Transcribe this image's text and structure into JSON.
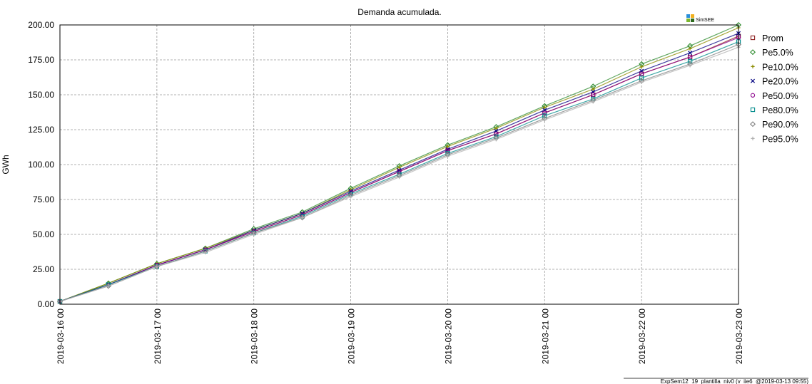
{
  "chart_data": {
    "type": "line",
    "title": "Demanda acumulada.",
    "ylabel": "GWh",
    "xlabel": "",
    "ylim": [
      0,
      200
    ],
    "yticks": [
      "0.00",
      "25.00",
      "50.00",
      "75.00",
      "100.00",
      "125.00",
      "150.00",
      "175.00",
      "200.00"
    ],
    "xticks": [
      "2019-03-16 00",
      "2019-03-17 00",
      "2019-03-18 00",
      "2019-03-19 00",
      "2019-03-20 00",
      "2019-03-21 00",
      "2019-03-22 00",
      "2019-03-23 00"
    ],
    "x": [
      "2019-03-16 00",
      "2019-03-16 12",
      "2019-03-17 00",
      "2019-03-17 12",
      "2019-03-18 00",
      "2019-03-18 12",
      "2019-03-19 00",
      "2019-03-19 12",
      "2019-03-20 00",
      "2019-03-20 12",
      "2019-03-21 00",
      "2019-03-21 12",
      "2019-03-22 00",
      "2019-03-22 12",
      "2019-03-23 00"
    ],
    "grid": true,
    "legend_position": "right",
    "series": [
      {
        "name": "Prom",
        "marker": "square",
        "color": "#8b1a1a",
        "values": [
          2,
          14,
          28,
          39,
          52,
          64,
          80,
          95,
          110,
          122,
          137,
          150,
          165,
          177,
          192
        ]
      },
      {
        "name": "Pe5.0%",
        "marker": "diamond",
        "color": "#2e8b2e",
        "values": [
          2,
          15,
          29,
          40,
          54,
          66,
          83,
          99,
          114,
          127,
          142,
          156,
          172,
          185,
          200
        ]
      },
      {
        "name": "Pe10.0%",
        "marker": "plus",
        "color": "#8b8b00",
        "values": [
          2,
          15,
          29,
          40,
          53,
          65,
          82,
          98,
          113,
          126,
          141,
          154,
          170,
          183,
          198
        ]
      },
      {
        "name": "Pe20.0%",
        "marker": "x",
        "color": "#000080",
        "values": [
          2,
          14,
          28,
          39,
          53,
          65,
          81,
          96,
          111,
          124,
          139,
          152,
          167,
          180,
          194
        ]
      },
      {
        "name": "Pe50.0%",
        "marker": "circle",
        "color": "#8b008b",
        "values": [
          2,
          14,
          28,
          39,
          52,
          64,
          80,
          95,
          110,
          122,
          137,
          150,
          165,
          177,
          191
        ]
      },
      {
        "name": "Pe80.0%",
        "marker": "square",
        "color": "#008b8b",
        "values": [
          2,
          14,
          27,
          38,
          51,
          63,
          79,
          93,
          108,
          120,
          135,
          147,
          162,
          174,
          188
        ]
      },
      {
        "name": "Pe90.0%",
        "marker": "diamond",
        "color": "#808080",
        "values": [
          2,
          13,
          27,
          38,
          51,
          62,
          78,
          92,
          107,
          119,
          133,
          146,
          160,
          172,
          186
        ]
      },
      {
        "name": "Pe95.0%",
        "marker": "plus",
        "color": "#b0b0b0",
        "values": [
          2,
          13,
          27,
          37,
          50,
          62,
          77,
          91,
          106,
          118,
          132,
          145,
          159,
          171,
          184
        ]
      }
    ]
  },
  "logo_text": "SimSEE",
  "footer_text": "ExpSem12_19_plantilla_niv0 (v_iie6_@2019-03-13 09:55)"
}
